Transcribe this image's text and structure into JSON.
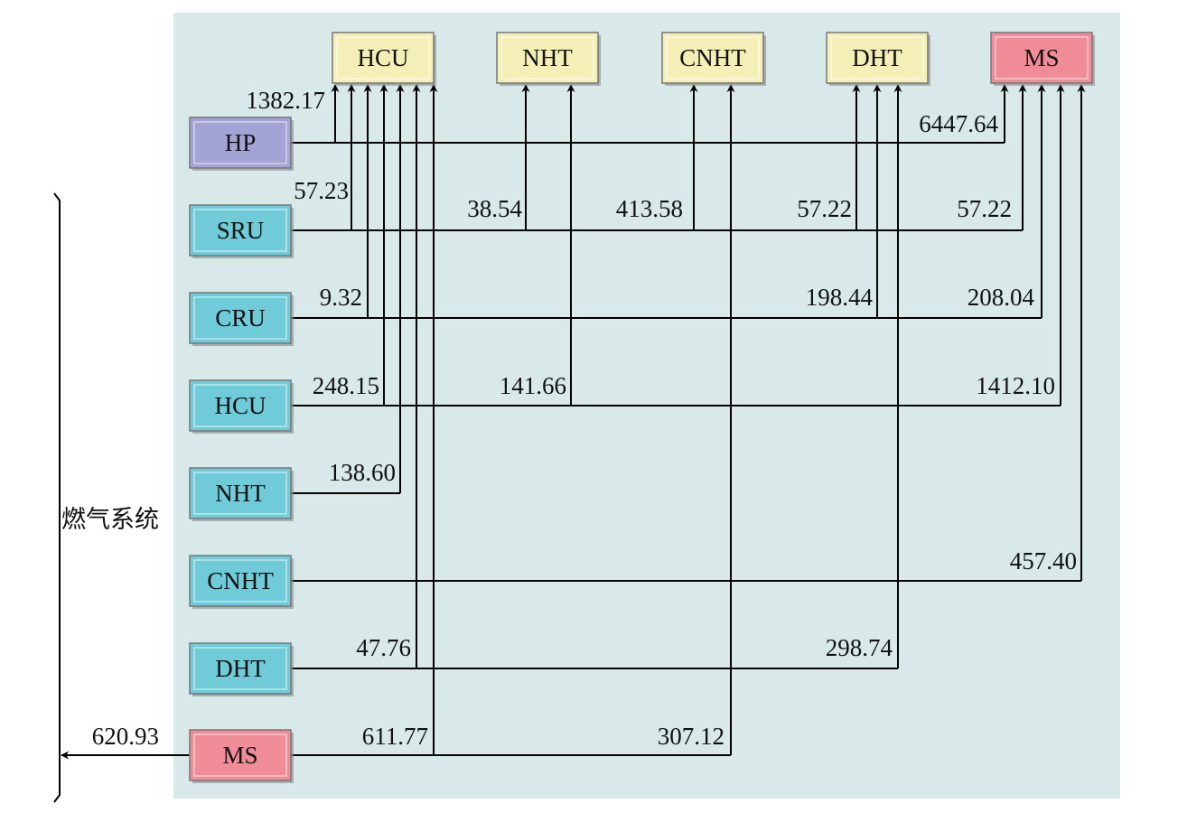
{
  "side_label": "燃气系统",
  "output_value": "620.93",
  "top_units": [
    {
      "id": "HCU",
      "label": "HCU",
      "type": "yellow"
    },
    {
      "id": "NHT",
      "label": "NHT",
      "type": "yellow"
    },
    {
      "id": "CNHT",
      "label": "CNHT",
      "type": "yellow"
    },
    {
      "id": "DHT",
      "label": "DHT",
      "type": "yellow"
    },
    {
      "id": "MS",
      "label": "MS",
      "type": "red"
    }
  ],
  "source_units": [
    {
      "id": "HP",
      "label": "HP",
      "type": "purple"
    },
    {
      "id": "SRU",
      "label": "SRU",
      "type": "cyan"
    },
    {
      "id": "CRU",
      "label": "CRU",
      "type": "cyan"
    },
    {
      "id": "HCU",
      "label": "HCU",
      "type": "cyan"
    },
    {
      "id": "NHT",
      "label": "NHT",
      "type": "cyan"
    },
    {
      "id": "CNHT",
      "label": "CNHT",
      "type": "cyan"
    },
    {
      "id": "DHT",
      "label": "DHT",
      "type": "cyan"
    },
    {
      "id": "MS",
      "label": "MS",
      "type": "red"
    }
  ],
  "flows": [
    {
      "from": "HP",
      "to": "HCU",
      "value": "1382.17"
    },
    {
      "from": "HP",
      "to": "MS",
      "value": "6447.64"
    },
    {
      "from": "SRU",
      "to": "HCU",
      "value": "57.23"
    },
    {
      "from": "SRU",
      "to": "NHT",
      "value": "38.54"
    },
    {
      "from": "SRU",
      "to": "CNHT",
      "value": "413.58"
    },
    {
      "from": "SRU",
      "to": "DHT",
      "value": "57.22"
    },
    {
      "from": "SRU",
      "to": "MS",
      "value": "57.22"
    },
    {
      "from": "CRU",
      "to": "HCU",
      "value": "9.32"
    },
    {
      "from": "CRU",
      "to": "DHT",
      "value": "198.44"
    },
    {
      "from": "CRU",
      "to": "MS",
      "value": "208.04"
    },
    {
      "from": "HCU",
      "to": "HCU",
      "value": "248.15"
    },
    {
      "from": "HCU",
      "to": "NHT",
      "value": "141.66"
    },
    {
      "from": "HCU",
      "to": "MS",
      "value": "1412.10"
    },
    {
      "from": "NHT",
      "to": "HCU",
      "value": "138.60"
    },
    {
      "from": "CNHT",
      "to": "MS",
      "value": "457.40"
    },
    {
      "from": "DHT",
      "to": "HCU",
      "value": "47.76"
    },
    {
      "from": "DHT",
      "to": "DHT",
      "value": "298.74"
    },
    {
      "from": "MS",
      "to": "HCU",
      "value": "611.77"
    },
    {
      "from": "MS",
      "to": "CNHT",
      "value": "307.12"
    }
  ],
  "colors": {
    "panel": "#d9e9e9",
    "yellow": "#f3efb6",
    "cyan": "#6fcbd8",
    "purple": "#a3a3d6",
    "red": "#ef8c97",
    "line": "#000000"
  }
}
